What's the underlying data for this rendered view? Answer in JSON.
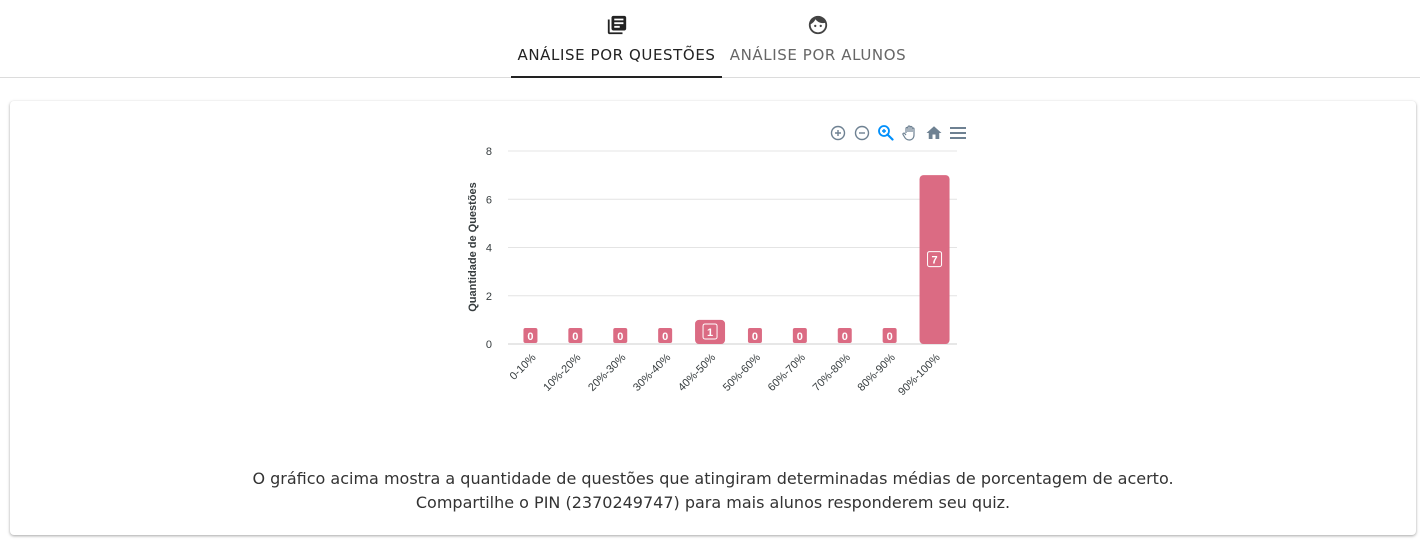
{
  "tabs": [
    {
      "label": "ANÁLISE POR QUESTÕES",
      "icon": "library-books-icon",
      "active": true
    },
    {
      "label": "ANÁLISE POR ALUNOS",
      "icon": "face-icon",
      "active": false
    }
  ],
  "toolbar": {
    "icons": [
      "zoom-in-icon",
      "zoom-out-icon",
      "zoom-selection-icon",
      "pan-hand-icon",
      "reset-home-icon",
      "menu-icon"
    ]
  },
  "chart_data": {
    "type": "bar",
    "categories": [
      "0-10%",
      "10%-20%",
      "20%-30%",
      "30%-40%",
      "40%-50%",
      "50%-60%",
      "60%-70%",
      "70%-80%",
      "80%-90%",
      "90%-100%"
    ],
    "values": [
      0,
      0,
      0,
      0,
      1,
      0,
      0,
      0,
      0,
      7
    ],
    "ylabel": "Quantidade de Questões",
    "ylim": [
      0,
      8
    ],
    "yticks": [
      0,
      2,
      4,
      6,
      8
    ],
    "color": "#db6b83",
    "grid": true
  },
  "caption": {
    "line1": "O gráfico acima mostra a quantidade de questões que atingiram determinadas médias de porcentagem de acerto.",
    "line2": "Compartilhe o PIN (2370249747) para mais alunos responderem seu quiz."
  }
}
